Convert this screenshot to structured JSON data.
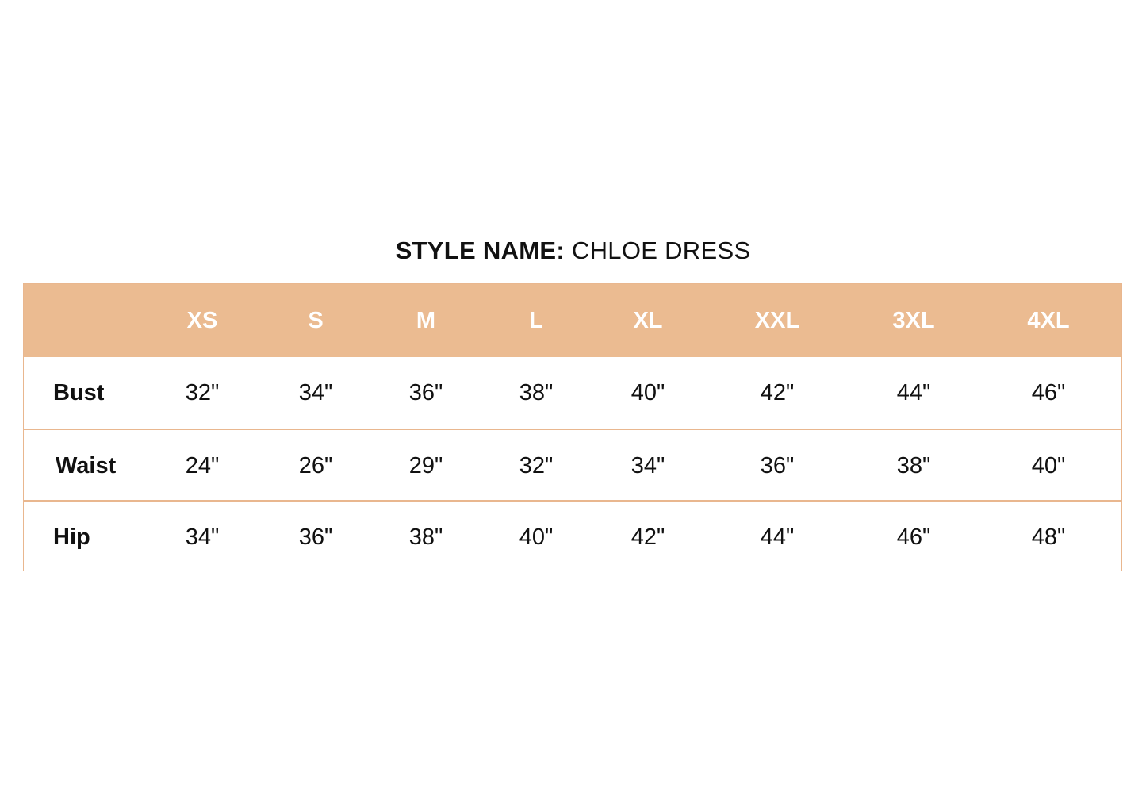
{
  "title": {
    "label": "STYLE NAME:",
    "value": "CHLOE DRESS"
  },
  "colors": {
    "header_bg": "#ebbb91",
    "border": "#e9b78f",
    "header_text": "#ffffff"
  },
  "table": {
    "sizes": [
      "XS",
      "S",
      "M",
      "L",
      "XL",
      "XXL",
      "3XL",
      "4XL"
    ],
    "rows": [
      {
        "label": "Bust",
        "values": [
          "32\"",
          "34\"",
          "36\"",
          "38\"",
          "40\"",
          "42\"",
          "44\"",
          "46\""
        ]
      },
      {
        "label": "Waist",
        "values": [
          "24\"",
          "26\"",
          "29\"",
          "32\"",
          "34\"",
          "36\"",
          "38\"",
          "40\""
        ]
      },
      {
        "label": "Hip",
        "values": [
          "34\"",
          "36\"",
          "38\"",
          "40\"",
          "42\"",
          "44\"",
          "46\"",
          "48\""
        ]
      }
    ]
  }
}
